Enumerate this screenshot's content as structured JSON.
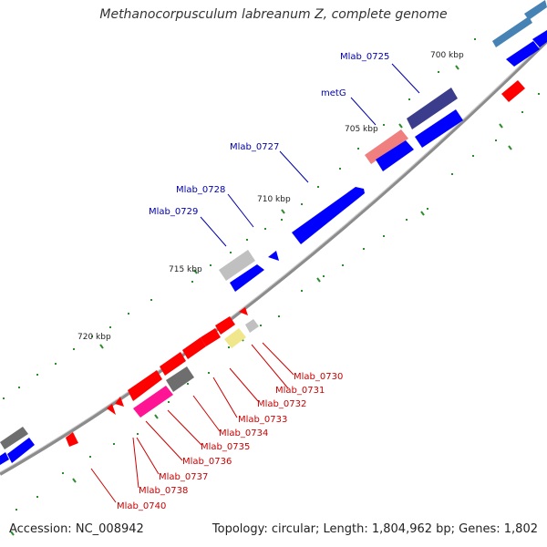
{
  "title": "Methanocorpusculum labreanum Z, complete genome",
  "footer": {
    "accession_label": "Accession:",
    "accession_value": "NC_008942",
    "summary": "Topology: circular; Length: 1,804,962 bp; Genes: 1,802"
  },
  "colors": {
    "backbone": "#8c8c8c",
    "blue_gene": "#0000ff",
    "red_gene": "#ff0000",
    "gray_gene": "#c0c0c0",
    "dark_gray_gene": "#6e6e6e",
    "navy_gene": "#3c3c8c",
    "salmon_gene": "#f08080",
    "magenta_gene": "#ff1493",
    "pale_yellow_gene": "#f0e68c",
    "steel_blue_gene": "#4682b4",
    "tick": "#2e8b2e",
    "label_blue": "#0000aa",
    "label_red": "#cc0000"
  },
  "scale_labels": [
    "700 kbp",
    "705 kbp",
    "710 kbp",
    "715 kbp",
    "720 kbp"
  ],
  "gene_labels_upper": [
    "Mlab_0725",
    "metG",
    "Mlab_0727",
    "Mlab_0728",
    "Mlab_0729"
  ],
  "gene_labels_lower": [
    "Mlab_0730",
    "Mlab_0731",
    "Mlab_0732",
    "Mlab_0733",
    "Mlab_0734",
    "Mlab_0735",
    "Mlab_0736",
    "Mlab_0737",
    "Mlab_0738",
    "Mlab_0740"
  ]
}
